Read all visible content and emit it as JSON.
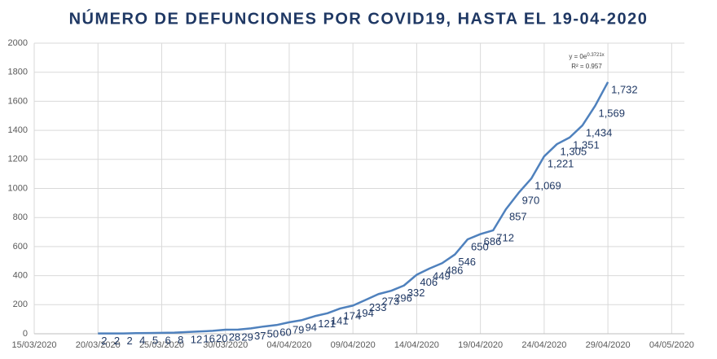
{
  "chart_data": {
    "type": "line",
    "title": "NÚMERO DE DEFUNCIONES POR COVID19, HASTA EL 19-04-2020",
    "x": [
      "20/03/2020",
      "21/03/2020",
      "22/03/2020",
      "23/03/2020",
      "24/03/2020",
      "25/03/2020",
      "26/03/2020",
      "27/03/2020",
      "28/03/2020",
      "29/03/2020",
      "30/03/2020",
      "31/03/2020",
      "01/04/2020",
      "02/04/2020",
      "03/04/2020",
      "04/04/2020",
      "05/04/2020",
      "06/04/2020",
      "07/04/2020",
      "08/04/2020",
      "09/04/2020",
      "10/04/2020",
      "11/04/2020",
      "12/04/2020",
      "13/04/2020",
      "14/04/2020",
      "15/04/2020",
      "16/04/2020",
      "17/04/2020",
      "18/04/2020",
      "19/04/2020",
      "20/04/2020",
      "21/04/2020",
      "22/04/2020",
      "23/04/2020",
      "24/04/2020",
      "25/04/2020",
      "26/04/2020",
      "27/04/2020",
      "28/04/2020",
      "29/04/2020"
    ],
    "series": [
      {
        "name": "Defunciones",
        "color": "#4f81bd",
        "values": [
          2,
          2,
          2,
          4,
          5,
          6,
          8,
          12,
          16,
          20,
          28,
          29,
          37,
          50,
          60,
          79,
          94,
          121,
          141,
          174,
          194,
          233,
          273,
          296,
          332,
          406,
          449,
          486,
          546,
          650,
          686,
          712,
          857,
          970,
          1069,
          1221,
          1305,
          1351,
          1434,
          1569,
          1732
        ],
        "value_labels": [
          "2",
          "2",
          "2",
          "4",
          "5",
          "6",
          "8",
          "12",
          "16",
          "20",
          "28",
          "29",
          "37",
          "50",
          "60",
          "79",
          "94",
          "121",
          "141",
          "174",
          "194",
          "233",
          "273",
          "296",
          "332",
          "406",
          "449",
          "486",
          "546",
          "650",
          "686",
          "712",
          "857",
          "970",
          "1,069",
          "1,221",
          "1,305",
          "1,351",
          "1,434",
          "1,569",
          "1,732"
        ]
      }
    ],
    "xlim": [
      "15/03/2020",
      "05/05/2020"
    ],
    "xticks": [
      "15/03/2020",
      "20/03/2020",
      "25/03/2020",
      "30/03/2020",
      "04/04/2020",
      "09/04/2020",
      "14/04/2020",
      "19/04/2020",
      "24/04/2020",
      "29/04/2020",
      "04/05/2020"
    ],
    "ylim": [
      0,
      2000
    ],
    "yticks": [
      0,
      200,
      400,
      600,
      800,
      1000,
      1200,
      1400,
      1600,
      1800,
      2000
    ],
    "grid": true,
    "annotations": [
      "y = 0e",
      "0.3721x",
      "R² = 0.957"
    ]
  }
}
